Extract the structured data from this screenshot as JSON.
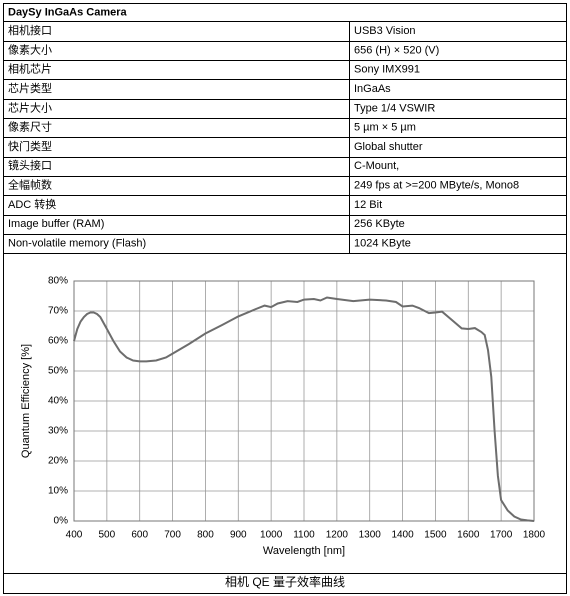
{
  "table": {
    "title": "DaySy  InGaAs Camera",
    "rows": [
      [
        "相机接口",
        "USB3 Vision"
      ],
      [
        "像素大小",
        "656 (H) × 520 (V)"
      ],
      [
        "相机芯片",
        "Sony IMX991"
      ],
      [
        "芯片类型",
        "InGaAs"
      ],
      [
        "芯片大小",
        "Type 1/4 VSWIR"
      ],
      [
        "像素尺寸",
        "5 µm × 5 µm"
      ],
      [
        "快门类型",
        "Global shutter"
      ],
      [
        "镜头接口",
        "C-Mount,"
      ],
      [
        "全幅帧数",
        "249 fps at >=200 MByte/s, Mono8"
      ],
      [
        "ADC 转换",
        "12 Bit"
      ],
      [
        "Image buffer (RAM)",
        "256 KByte"
      ],
      [
        "Non-volatile memory (Flash)",
        "1024 KByte"
      ]
    ]
  },
  "chart_data": {
    "type": "line",
    "x_label": "Wavelength [nm]",
    "y_label": "Quantum Efficiency [%]",
    "color": "#6d6d6d",
    "grid": true,
    "x": [
      400,
      410,
      420,
      430,
      440,
      450,
      460,
      470,
      480,
      490,
      500,
      520,
      540,
      560,
      580,
      600,
      620,
      650,
      680,
      700,
      750,
      800,
      850,
      900,
      950,
      980,
      1000,
      1020,
      1050,
      1080,
      1100,
      1130,
      1150,
      1170,
      1200,
      1250,
      1300,
      1350,
      1380,
      1400,
      1430,
      1450,
      1480,
      1500,
      1520,
      1550,
      1580,
      1600,
      1620,
      1640,
      1650,
      1660,
      1670,
      1680,
      1690,
      1700,
      1720,
      1740,
      1760,
      1780,
      1800
    ],
    "values": [
      60,
      64,
      66.5,
      68,
      69,
      69.5,
      69.5,
      69,
      68,
      66,
      64,
      60,
      56.5,
      54.5,
      53.5,
      53.2,
      53.2,
      53.5,
      54.5,
      55.8,
      59,
      62.5,
      65.3,
      68.2,
      70.5,
      71.8,
      71.3,
      72.5,
      73.3,
      73,
      73.8,
      74,
      73.5,
      74.5,
      74,
      73.3,
      73.8,
      73.5,
      73,
      71.5,
      71.8,
      71,
      69.3,
      69.5,
      69.8,
      67,
      64.2,
      64,
      64.3,
      63,
      62,
      57,
      48,
      30,
      15,
      7,
      3.5,
      1.5,
      0.5,
      0.2,
      0
    ],
    "xlim": [
      400,
      1800
    ],
    "ylim": [
      0,
      80
    ],
    "xticks": [
      400,
      500,
      600,
      700,
      800,
      900,
      1000,
      1100,
      1200,
      1300,
      1400,
      1500,
      1600,
      1700,
      1800
    ],
    "yticks": [
      {
        "value": 0,
        "label": "0%"
      },
      {
        "value": 10,
        "label": "10%"
      },
      {
        "value": 20,
        "label": "20%"
      },
      {
        "value": 30,
        "label": "30%"
      },
      {
        "value": 40,
        "label": "40%"
      },
      {
        "value": 50,
        "label": "50%"
      },
      {
        "value": 60,
        "label": "60%"
      },
      {
        "value": 70,
        "label": "70%"
      },
      {
        "value": 80,
        "label": "80%"
      }
    ]
  },
  "caption": "相机 QE 量子效率曲线"
}
